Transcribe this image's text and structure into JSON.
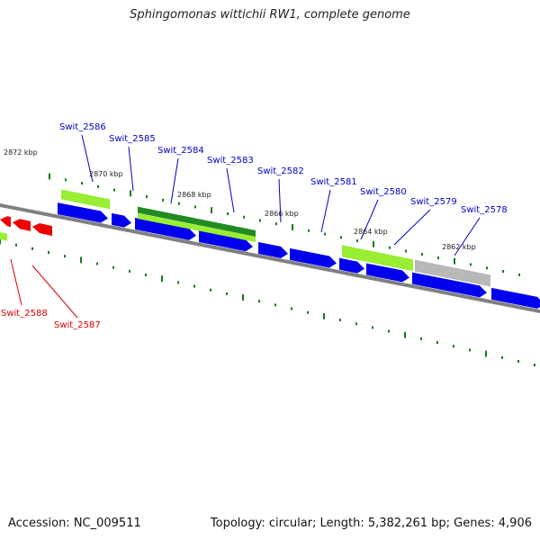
{
  "title": "Sphingomonas wittichii RW1, complete genome",
  "footer": {
    "accession": "Accession: NC_009511",
    "summary": "Topology: circular; Length: 5,382,261 bp; Genes: 4,906"
  },
  "colors": {
    "forward_gene": "#0000ee",
    "reverse_gene": "#ee0000",
    "label_forward": "#0000cc",
    "label_reverse": "#dd0000",
    "feature_light": "#99ee33",
    "feature_dark": "#228b22",
    "feature_gray": "#b8b8b8",
    "backbone": "#808080",
    "ticks": "#1a7a1a"
  },
  "ruler_labels": [
    "2872 kbp",
    "2870 kbp",
    "2868 kbp",
    "2866 kbp",
    "2864 kbp",
    "2862 kbp"
  ],
  "gene_labels": [
    {
      "name": "Swit_2586",
      "strand": "forward"
    },
    {
      "name": "Swit_2585",
      "strand": "forward"
    },
    {
      "name": "Swit_2584",
      "strand": "forward"
    },
    {
      "name": "Swit_2583",
      "strand": "forward"
    },
    {
      "name": "Swit_2582",
      "strand": "forward"
    },
    {
      "name": "Swit_2581",
      "strand": "forward"
    },
    {
      "name": "Swit_2580",
      "strand": "forward"
    },
    {
      "name": "Swit_2579",
      "strand": "forward"
    },
    {
      "name": "Swit_2578",
      "strand": "forward"
    },
    {
      "name": "Swit_2588",
      "strand": "reverse"
    },
    {
      "name": "Swit_2587",
      "strand": "reverse"
    }
  ]
}
